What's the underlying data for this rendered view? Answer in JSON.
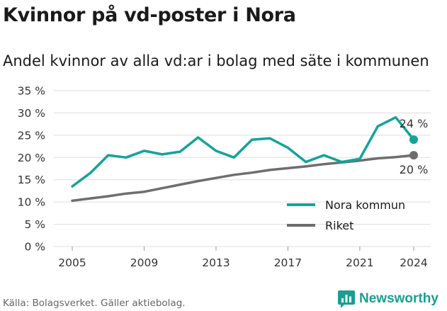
{
  "header": {
    "title": "Kvinnor på vd-poster i Nora",
    "subtitle": "Andel kvinnor av alla vd:ar i bolag med säte i kommunen"
  },
  "footer": {
    "source": "Källa: Bolagsverket. Gäller aktiebolag.",
    "brand": "Newsworthy"
  },
  "colors": {
    "nora": "#14a39a",
    "riket": "#6e6e6e",
    "grid": "#dddddd",
    "brand": "#1a9e92"
  },
  "icons": {
    "brand_logo": "bar-chart-speech-bubble-icon"
  },
  "chart_data": {
    "type": "line",
    "x": [
      2005,
      2006,
      2007,
      2008,
      2009,
      2010,
      2011,
      2012,
      2013,
      2014,
      2015,
      2016,
      2017,
      2018,
      2019,
      2020,
      2021,
      2022,
      2023,
      2024
    ],
    "xticks": [
      2005,
      2009,
      2013,
      2017,
      2021,
      2024
    ],
    "xticklabels": [
      "2005",
      "2009",
      "2013",
      "2017",
      "2021",
      "2024"
    ],
    "yticks": [
      0,
      5,
      10,
      15,
      20,
      25,
      30,
      35
    ],
    "yticklabels": [
      "0 %",
      "5 %",
      "10 %",
      "15 %",
      "20 %",
      "25 %",
      "30 %",
      "35 %"
    ],
    "ylim": [
      0,
      35
    ],
    "xlim": [
      2005,
      2024
    ],
    "grid": "horizontal",
    "legend_position": "bottom-right",
    "series": [
      {
        "name": "Nora kommun",
        "color": "#14a39a",
        "values": [
          13.5,
          16.5,
          20.5,
          20.0,
          21.5,
          20.7,
          21.3,
          24.5,
          21.5,
          20.0,
          24.0,
          24.3,
          22.2,
          19.0,
          20.5,
          19.0,
          19.7,
          27.0,
          29.0,
          24.0
        ],
        "end_label": "24 %"
      },
      {
        "name": "Riket",
        "color": "#6e6e6e",
        "values": [
          10.3,
          10.8,
          11.3,
          11.9,
          12.3,
          13.1,
          13.9,
          14.7,
          15.4,
          16.1,
          16.6,
          17.2,
          17.6,
          18.0,
          18.5,
          18.9,
          19.3,
          19.8,
          20.1,
          20.5
        ],
        "end_label": "20 %"
      }
    ]
  }
}
